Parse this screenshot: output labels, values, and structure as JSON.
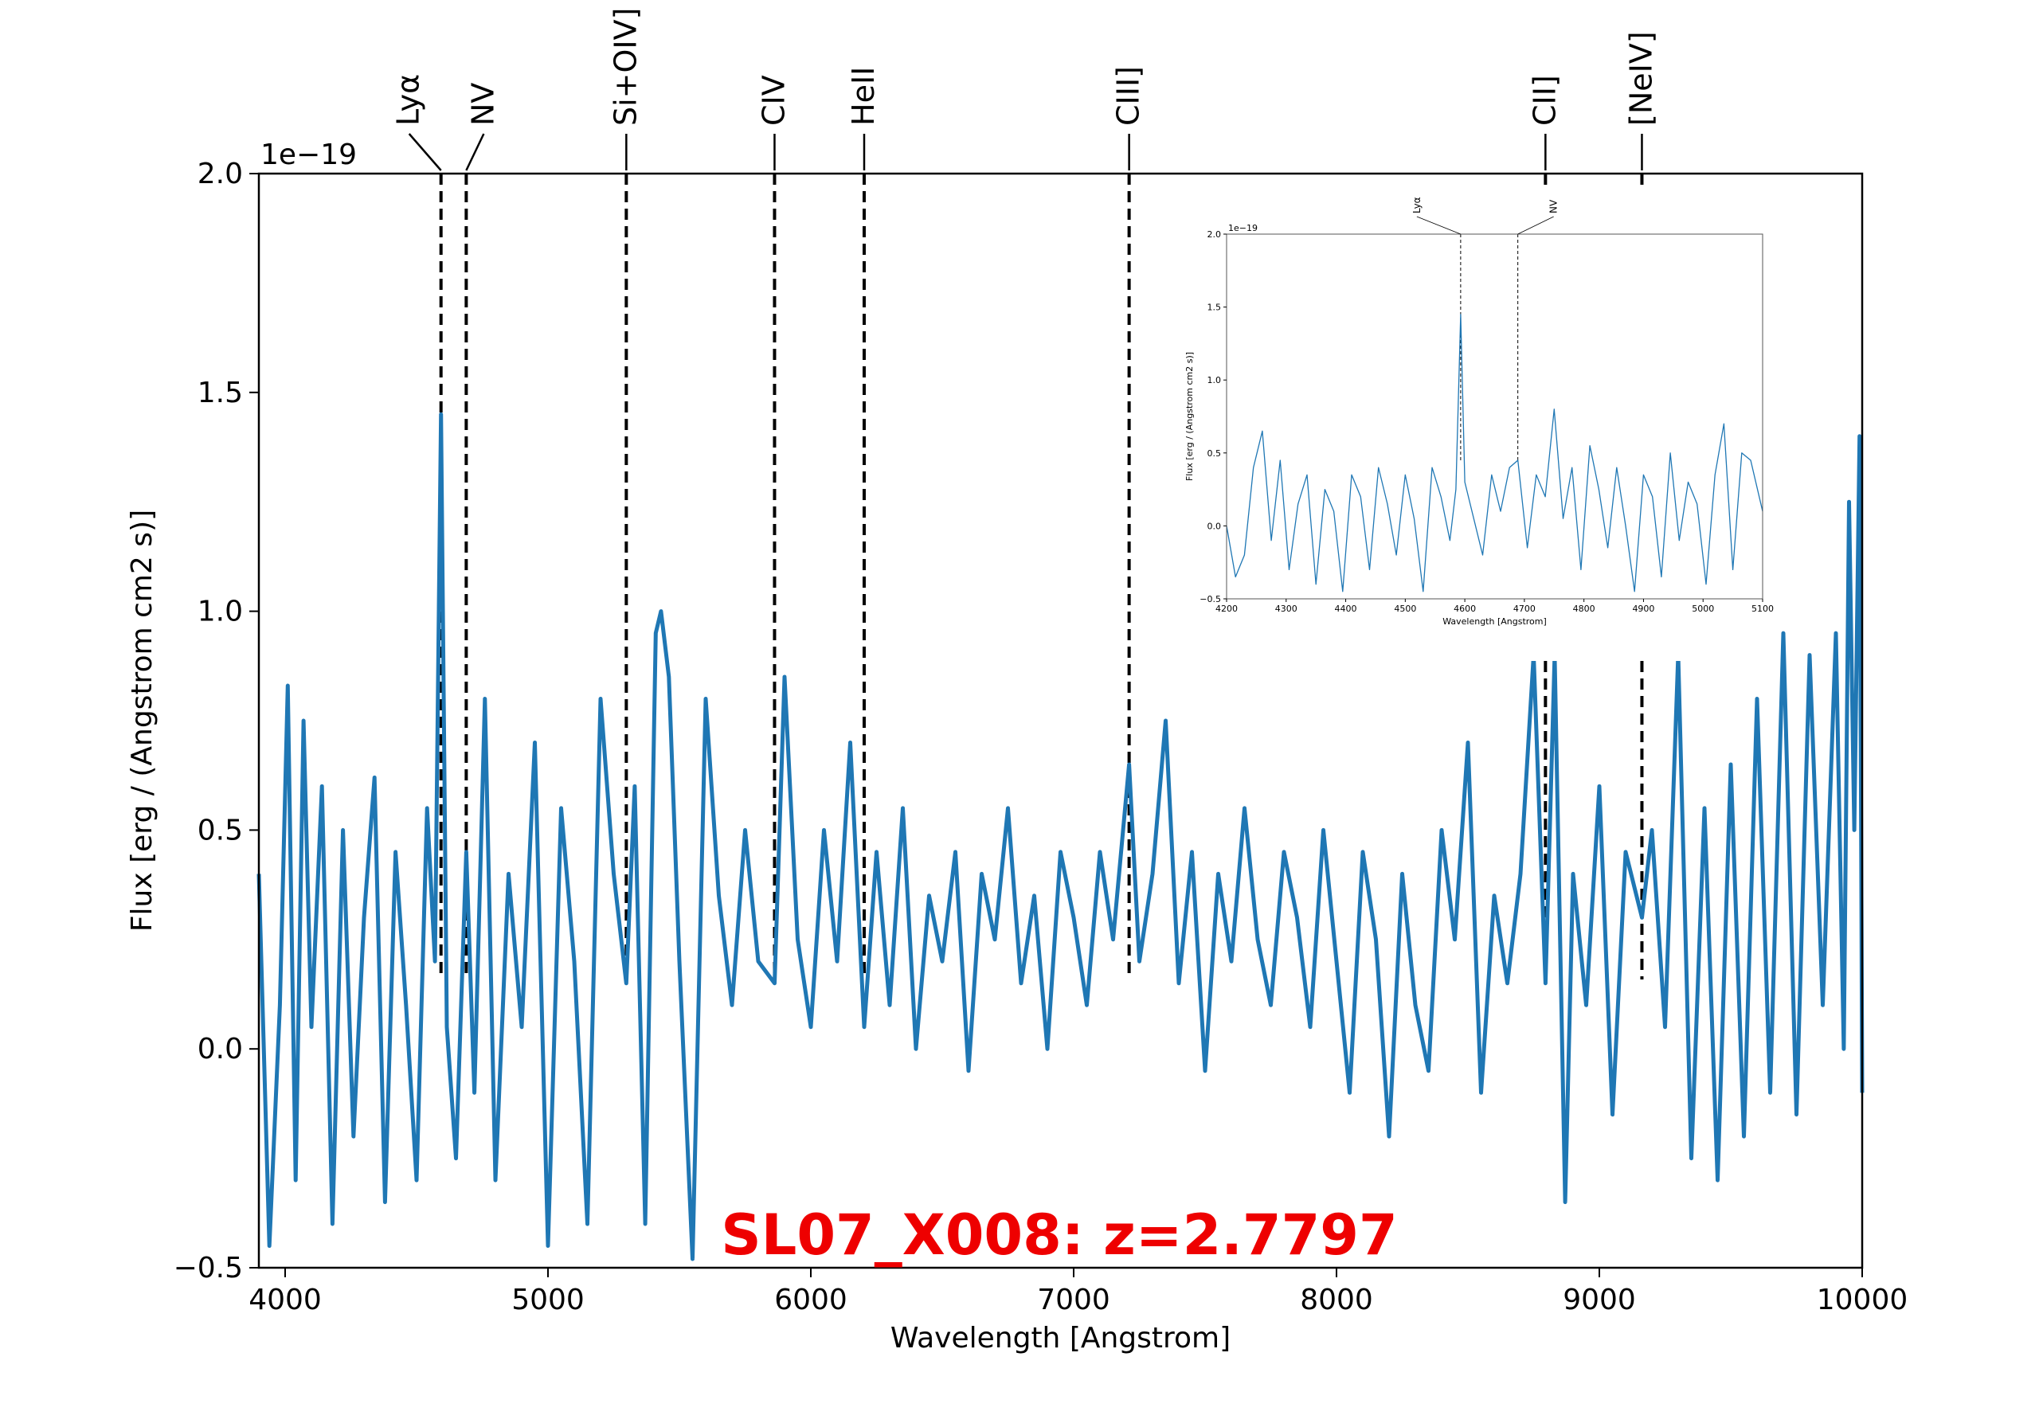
{
  "chart_data": [
    {
      "type": "line",
      "title": "SL07_X008: z=2.7797",
      "xlabel": "Wavelength [Angstrom]",
      "ylabel": "Flux [erg / (Angstrom cm2 s)]",
      "offset_text": "1e−19",
      "xlim": [
        3900,
        10000
      ],
      "ylim": [
        -0.5,
        2.0
      ],
      "xticks": [
        4000,
        5000,
        6000,
        7000,
        8000,
        9000,
        10000
      ],
      "xtick_labels": [
        "4000",
        "5000",
        "6000",
        "7000",
        "8000",
        "9000",
        "10000"
      ],
      "yticks": [
        -0.5,
        0.0,
        0.5,
        1.0,
        1.5,
        2.0
      ],
      "ytick_labels": [
        "−0.5",
        "0.0",
        "0.5",
        "1.0",
        "1.5",
        "2.0"
      ],
      "series_color": "#1f77b4",
      "emission_lines": [
        {
          "label": "Lyα",
          "wavelength": 4593
        },
        {
          "label": "NV",
          "wavelength": 4689
        },
        {
          "label": "Si+OIV]",
          "wavelength": 5298
        },
        {
          "label": "CIV",
          "wavelength": 5862
        },
        {
          "label": "HeII",
          "wavelength": 6203
        },
        {
          "label": "CIII]",
          "wavelength": 7211
        },
        {
          "label": "CII]",
          "wavelength": 8795
        },
        {
          "label": "[NeIV]",
          "wavelength": 9162
        }
      ],
      "series": [
        {
          "x": [
            3900,
            3940,
            3980,
            4010,
            4040,
            4070,
            4100,
            4140,
            4180,
            4220,
            4260,
            4300,
            4340,
            4380,
            4420,
            4460,
            4500,
            4540,
            4570,
            4593,
            4615,
            4650,
            4689,
            4720,
            4760,
            4800,
            4850,
            4900,
            4950,
            5000,
            5050,
            5100,
            5150,
            5200,
            5250,
            5298,
            5330,
            5370,
            5410,
            5430,
            5460,
            5500,
            5550,
            5600,
            5650,
            5700,
            5750,
            5800,
            5862,
            5900,
            5950,
            6000,
            6050,
            6100,
            6150,
            6203,
            6250,
            6300,
            6350,
            6400,
            6450,
            6500,
            6550,
            6600,
            6650,
            6700,
            6750,
            6800,
            6850,
            6900,
            6950,
            7000,
            7050,
            7100,
            7150,
            7211,
            7250,
            7300,
            7350,
            7400,
            7450,
            7500,
            7550,
            7600,
            7650,
            7700,
            7750,
            7800,
            7850,
            7900,
            7950,
            8000,
            8050,
            8100,
            8150,
            8200,
            8250,
            8300,
            8350,
            8400,
            8450,
            8500,
            8550,
            8600,
            8650,
            8700,
            8750,
            8795,
            8830,
            8870,
            8900,
            8950,
            9000,
            9050,
            9100,
            9162,
            9200,
            9250,
            9300,
            9350,
            9400,
            9450,
            9500,
            9550,
            9600,
            9650,
            9700,
            9750,
            9800,
            9850,
            9900,
            9930,
            9950,
            9970,
            9990,
            10000
          ],
          "y": [
            0.4,
            -0.45,
            0.1,
            0.83,
            -0.3,
            0.75,
            0.05,
            0.6,
            -0.4,
            0.5,
            -0.2,
            0.3,
            0.62,
            -0.35,
            0.45,
            0.1,
            -0.3,
            0.55,
            0.2,
            1.45,
            0.05,
            -0.25,
            0.45,
            -0.1,
            0.8,
            -0.3,
            0.4,
            0.05,
            0.7,
            -0.45,
            0.55,
            0.2,
            -0.4,
            0.8,
            0.4,
            0.15,
            0.6,
            -0.4,
            0.95,
            1.0,
            0.85,
            0.2,
            -0.48,
            0.8,
            0.35,
            0.1,
            0.5,
            0.2,
            0.15,
            0.85,
            0.25,
            0.05,
            0.5,
            0.2,
            0.7,
            0.05,
            0.45,
            0.1,
            0.55,
            0.0,
            0.35,
            0.2,
            0.45,
            -0.05,
            0.4,
            0.25,
            0.55,
            0.15,
            0.35,
            0.0,
            0.45,
            0.3,
            0.1,
            0.45,
            0.25,
            0.65,
            0.2,
            0.4,
            0.75,
            0.15,
            0.45,
            -0.05,
            0.4,
            0.2,
            0.55,
            0.25,
            0.1,
            0.45,
            0.3,
            0.05,
            0.5,
            0.2,
            -0.1,
            0.45,
            0.25,
            -0.2,
            0.4,
            0.1,
            -0.05,
            0.5,
            0.25,
            0.7,
            -0.1,
            0.35,
            0.15,
            0.4,
            0.9,
            0.15,
            0.9,
            -0.35,
            0.4,
            0.1,
            0.6,
            -0.15,
            0.45,
            0.3,
            0.5,
            0.05,
            0.9,
            -0.25,
            0.55,
            -0.3,
            0.65,
            -0.2,
            0.8,
            -0.1,
            0.95,
            -0.15,
            0.9,
            0.1,
            0.95,
            0.0,
            1.25,
            0.5,
            1.4,
            -0.1
          ]
        }
      ]
    },
    {
      "type": "line",
      "xlabel": "Wavelength [Angstrom]",
      "ylabel": "Flux [erg / (Angstrom cm2 s)]",
      "offset_text": "1e−19",
      "xlim": [
        4200,
        5100
      ],
      "ylim": [
        -0.5,
        2.0
      ],
      "xticks": [
        4200,
        4300,
        4400,
        4500,
        4600,
        4700,
        4800,
        4900,
        5000,
        5100
      ],
      "xtick_labels": [
        "4200",
        "4300",
        "4400",
        "4500",
        "4600",
        "4700",
        "4800",
        "4900",
        "5000",
        "5100"
      ],
      "yticks": [
        -0.5,
        0.0,
        0.5,
        1.0,
        1.5,
        2.0
      ],
      "ytick_labels": [
        "−0.5",
        "0.0",
        "0.5",
        "1.0",
        "1.5",
        "2.0"
      ],
      "series_color": "#1f77b4",
      "emission_lines": [
        {
          "label": "Lyα",
          "wavelength": 4593
        },
        {
          "label": "NV",
          "wavelength": 4689
        }
      ],
      "series": [
        {
          "x": [
            4200,
            4215,
            4230,
            4245,
            4260,
            4275,
            4290,
            4305,
            4320,
            4335,
            4350,
            4365,
            4380,
            4395,
            4410,
            4425,
            4440,
            4455,
            4470,
            4485,
            4500,
            4515,
            4530,
            4545,
            4560,
            4575,
            4585,
            4593,
            4600,
            4615,
            4630,
            4645,
            4660,
            4675,
            4689,
            4705,
            4720,
            4735,
            4750,
            4765,
            4780,
            4795,
            4810,
            4825,
            4840,
            4855,
            4870,
            4885,
            4900,
            4915,
            4930,
            4945,
            4960,
            4975,
            4990,
            5005,
            5020,
            5035,
            5050,
            5065,
            5080,
            5100
          ],
          "y": [
            0.0,
            -0.35,
            -0.2,
            0.4,
            0.65,
            -0.1,
            0.45,
            -0.3,
            0.15,
            0.35,
            -0.4,
            0.25,
            0.1,
            -0.45,
            0.35,
            0.2,
            -0.3,
            0.4,
            0.15,
            -0.2,
            0.35,
            0.05,
            -0.45,
            0.4,
            0.2,
            -0.1,
            0.25,
            1.45,
            0.3,
            0.05,
            -0.2,
            0.35,
            0.1,
            0.4,
            0.45,
            -0.15,
            0.35,
            0.2,
            0.8,
            0.05,
            0.4,
            -0.3,
            0.55,
            0.25,
            -0.15,
            0.4,
            0.0,
            -0.45,
            0.35,
            0.2,
            -0.35,
            0.5,
            -0.1,
            0.3,
            0.15,
            -0.4,
            0.35,
            0.7,
            -0.3,
            0.5,
            0.45,
            0.1
          ]
        }
      ]
    }
  ]
}
